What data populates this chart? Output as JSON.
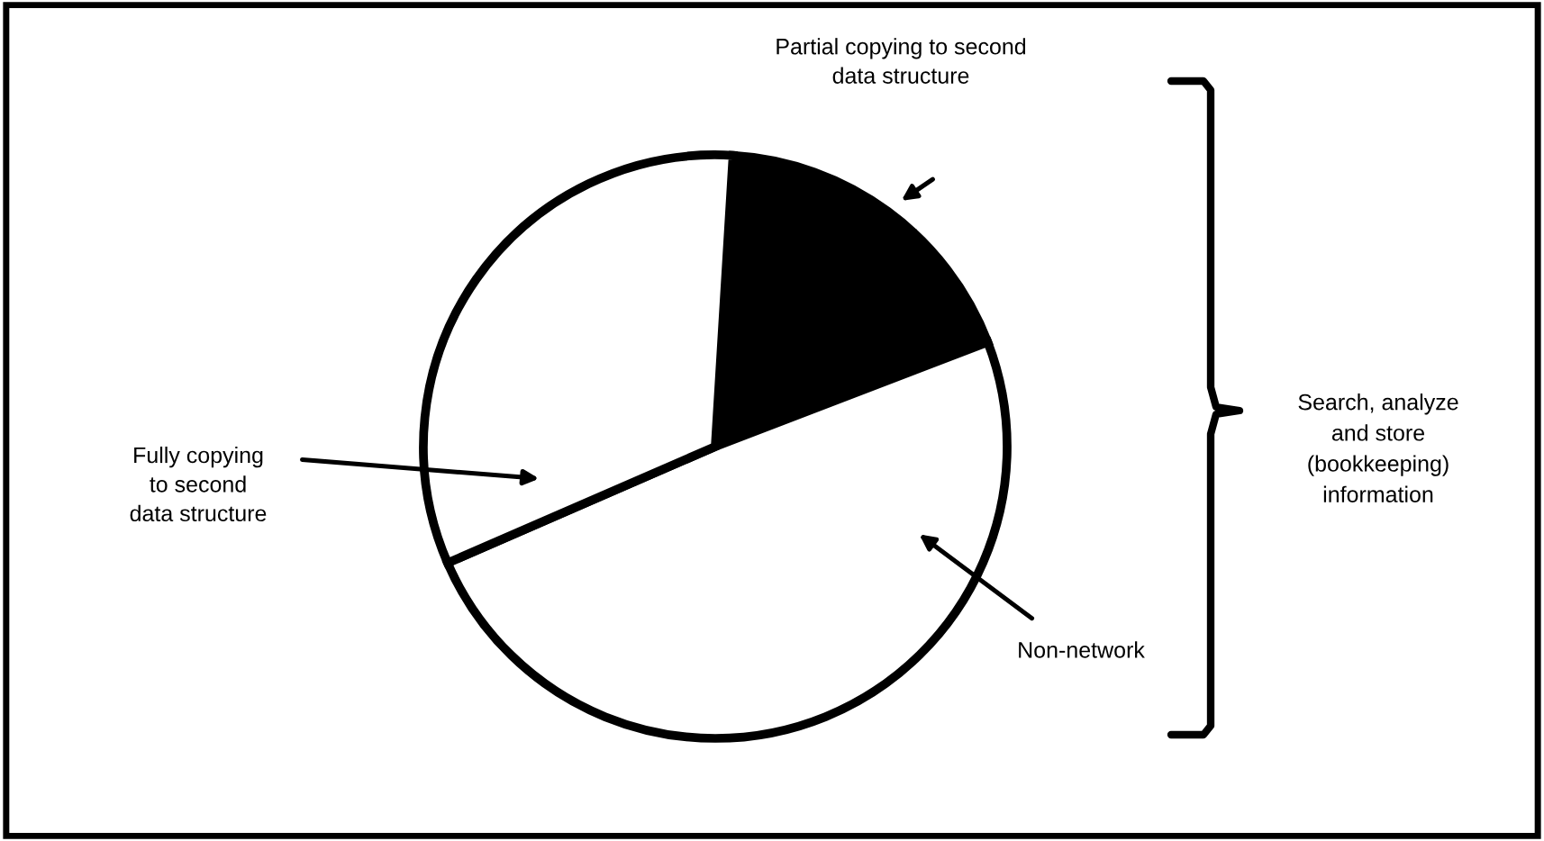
{
  "chart_data": {
    "type": "pie",
    "categories": [
      "Partial copying to second\ndata structure",
      "Non-network",
      "Fully copying\nto second\ndata structure"
    ],
    "values": [
      18.2,
      49.3,
      32.5
    ],
    "colors": [
      "#000000",
      "#ffffff",
      "#ffffff"
    ],
    "annotations": [
      "Search, analyze\nand store\n(bookkeeping)\ninformation"
    ],
    "legend": false
  }
}
